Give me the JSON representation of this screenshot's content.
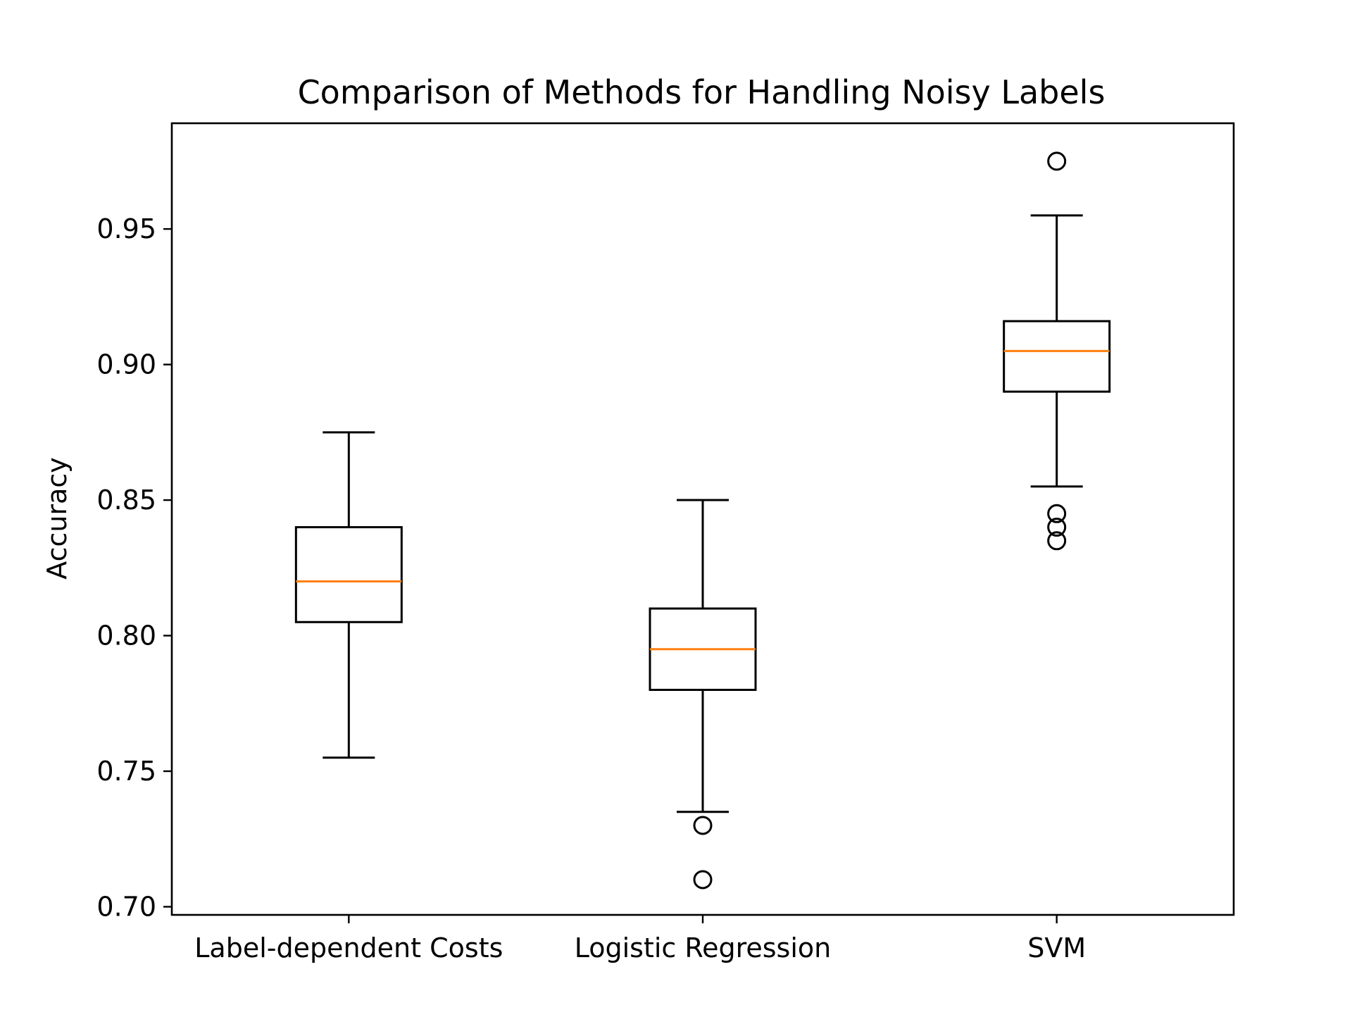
{
  "chart_data": {
    "type": "boxplot",
    "title": "Comparison of Methods for Handling Noisy Labels",
    "xlabel": "",
    "ylabel": "Accuracy",
    "ylim": [
      0.697,
      0.989
    ],
    "yticks": [
      0.7,
      0.75,
      0.8,
      0.85,
      0.9,
      0.95
    ],
    "ytick_labels": [
      "0.70",
      "0.75",
      "0.80",
      "0.85",
      "0.90",
      "0.95"
    ],
    "categories": [
      "Label-dependent Costs",
      "Logistic Regression",
      "SVM"
    ],
    "boxes": [
      {
        "category": "Label-dependent Costs",
        "whisker_low": 0.755,
        "q1": 0.805,
        "median": 0.82,
        "q3": 0.84,
        "whisker_high": 0.875,
        "outliers": []
      },
      {
        "category": "Logistic Regression",
        "whisker_low": 0.735,
        "q1": 0.78,
        "median": 0.795,
        "q3": 0.81,
        "whisker_high": 0.85,
        "outliers": [
          0.73,
          0.71
        ]
      },
      {
        "category": "SVM",
        "whisker_low": 0.855,
        "q1": 0.89,
        "median": 0.905,
        "q3": 0.916,
        "whisker_high": 0.955,
        "outliers": [
          0.975,
          0.845,
          0.84,
          0.835
        ]
      }
    ],
    "grid": false,
    "legend": "none",
    "colors": {
      "box": "#000000",
      "median": "#ff7f0e",
      "outlier": "#000000"
    }
  }
}
